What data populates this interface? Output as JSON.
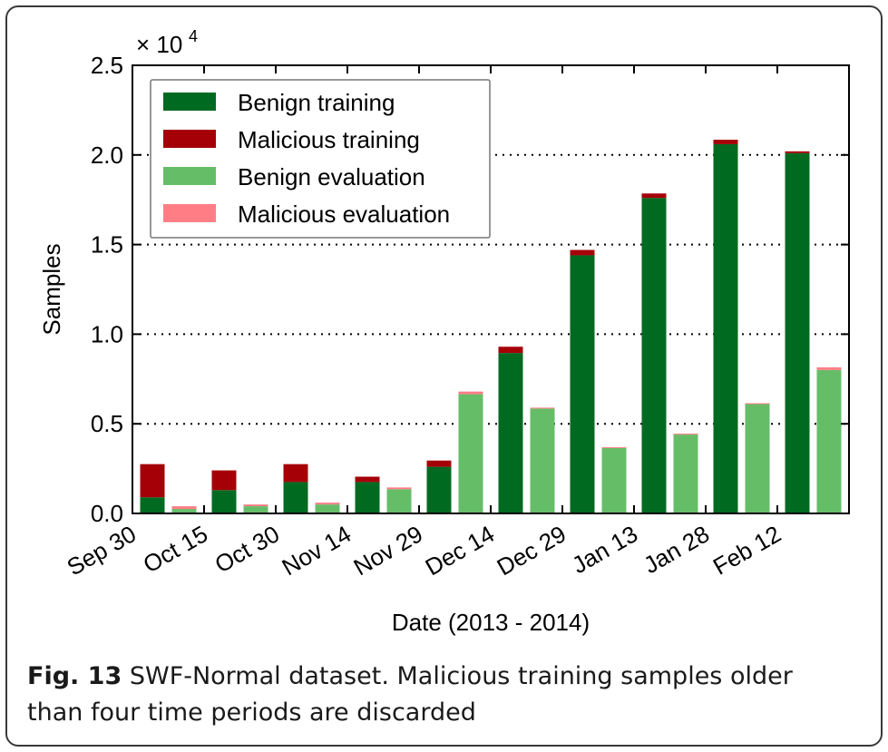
{
  "chart_data": {
    "type": "bar",
    "stacked": true,
    "categories": [
      "Sep 30",
      "Oct 15",
      "Oct 30",
      "Nov 14",
      "Nov 29",
      "Dec 14",
      "Dec 29",
      "Jan 13",
      "Jan 28",
      "Feb 12"
    ],
    "xlabel": "Date (2013 - 2014)",
    "ylabel": "Samples",
    "ylim": [
      0,
      25000
    ],
    "yticks": [
      "0.0",
      "0.5",
      "1.0",
      "1.5",
      "2.0",
      "2.5"
    ],
    "y_multiplier": "× 10",
    "y_multiplier_exp": "4",
    "grid": "horizontal dotted",
    "legend_position": "top-left",
    "series": [
      {
        "name": "Benign training",
        "group": "training",
        "color": "#006a21",
        "values": [
          900,
          1300,
          1750,
          1750,
          2600,
          8950,
          14400,
          17600,
          20600,
          20100
        ]
      },
      {
        "name": "Malicious training",
        "group": "training",
        "color": "#a50008",
        "values": [
          1850,
          1100,
          1000,
          300,
          350,
          350,
          300,
          250,
          250,
          100
        ]
      },
      {
        "name": "Benign evaluation",
        "group": "evaluation",
        "color": "#66bd68",
        "values": [
          250,
          400,
          500,
          1350,
          6650,
          5850,
          3650,
          4400,
          6100,
          8000
        ]
      },
      {
        "name": "Malicious evaluation",
        "group": "evaluation",
        "color": "#ff7e86",
        "values": [
          150,
          100,
          100,
          100,
          150,
          50,
          50,
          50,
          50,
          150
        ]
      }
    ]
  },
  "caption": {
    "label": "Fig. 13",
    "text": "SWF-Normal dataset. Malicious training samples older than four time periods are discarded"
  }
}
